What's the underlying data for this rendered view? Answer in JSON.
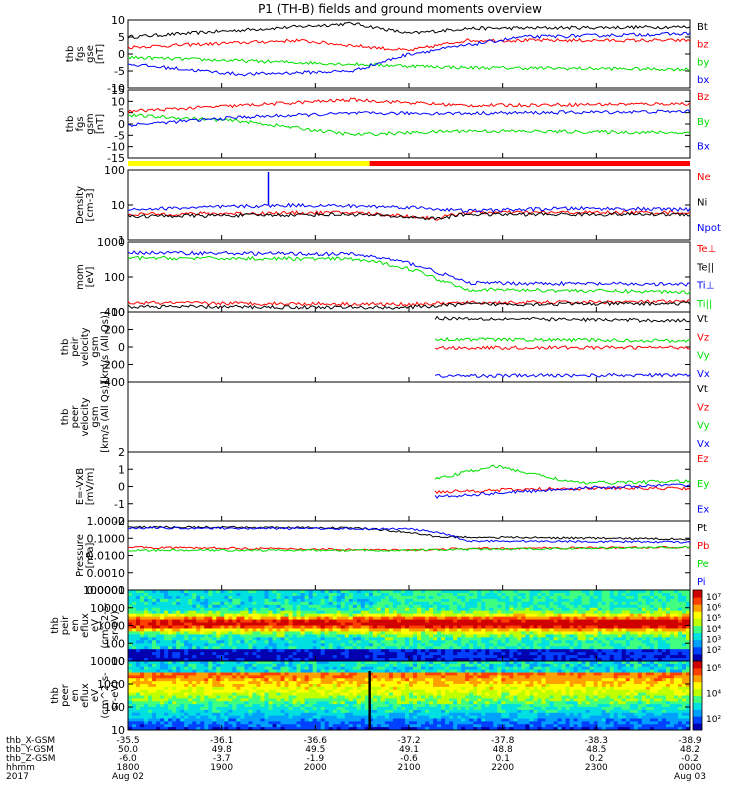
{
  "title": "P1 (TH-B) fields and ground moments overview",
  "colors": {
    "black": "#000000",
    "red": "#ff0000",
    "green": "#00e000",
    "blue": "#0000ff",
    "yellow": "#ffff00"
  },
  "ephemeris": {
    "rows": [
      {
        "label": "thb_X-GSM",
        "values": [
          "-35.5",
          "-36.1",
          "-36.6",
          "-37.2",
          "-37.8",
          "-38.3",
          "-38.9"
        ]
      },
      {
        "label": "thb_Y-GSM",
        "values": [
          "50.0",
          "49.8",
          "49.5",
          "49.1",
          "48.8",
          "48.5",
          "48.2"
        ]
      },
      {
        "label": "thb_Z-GSM",
        "values": [
          "-6.0",
          "-3.7",
          "-1.9",
          "-0.6",
          "0.1",
          "0.2",
          "-0.2"
        ]
      },
      {
        "label": "hhmm",
        "values": [
          "1800",
          "1900",
          "2000",
          "2100",
          "2200",
          "2300",
          "0000"
        ]
      },
      {
        "label": "2017",
        "values": [
          "Aug 02",
          "",
          "",
          "",
          "",
          "",
          "Aug 03"
        ]
      }
    ]
  },
  "chart_data": [
    {
      "type": "line",
      "id": "fgs_gse",
      "ylabel": [
        "thb",
        "fgs",
        "gse",
        "[nT]"
      ],
      "ylim": [
        -10,
        10
      ],
      "yticks": [
        "10",
        "5",
        "0",
        "-5",
        "-10"
      ],
      "legend": [
        "Bt",
        "bz",
        "by",
        "bx"
      ],
      "legend_colors": [
        "black",
        "red",
        "green",
        "blue"
      ],
      "series": [
        {
          "name": "Bt",
          "trace": [
            [
              0,
              5
            ],
            [
              0.2,
              7
            ],
            [
              0.4,
              9
            ],
            [
              0.5,
              6
            ],
            [
              0.6,
              7.5
            ],
            [
              1,
              8
            ]
          ]
        },
        {
          "name": "bz",
          "trace": [
            [
              0,
              2
            ],
            [
              0.3,
              4
            ],
            [
              0.5,
              1
            ],
            [
              0.6,
              4
            ],
            [
              1,
              4
            ]
          ]
        },
        {
          "name": "by",
          "trace": [
            [
              0,
              -1
            ],
            [
              0.2,
              -2
            ],
            [
              0.4,
              -3
            ],
            [
              0.6,
              -4
            ],
            [
              1,
              -4.5
            ]
          ]
        },
        {
          "name": "bx",
          "trace": [
            [
              0,
              -3
            ],
            [
              0.2,
              -6
            ],
            [
              0.4,
              -5
            ],
            [
              0.5,
              0
            ],
            [
              0.7,
              5
            ],
            [
              1,
              6
            ]
          ]
        }
      ]
    },
    {
      "type": "line",
      "id": "fgs_gsm",
      "ylabel": [
        "thb",
        "fgs",
        "gsm",
        "[nT]"
      ],
      "ylim": [
        -20,
        15
      ],
      "yticks": [
        "15",
        "10",
        "5",
        "0",
        "-5",
        "-10",
        "-15"
      ],
      "legend": [
        "Bz",
        "By",
        "Bx"
      ],
      "legend_colors": [
        "red",
        "green",
        "blue"
      ],
      "series": [
        {
          "name": "Bz",
          "trace": [
            [
              0,
              4
            ],
            [
              0.2,
              7
            ],
            [
              0.4,
              10
            ],
            [
              0.6,
              7
            ],
            [
              1,
              8
            ]
          ]
        },
        {
          "name": "By",
          "trace": [
            [
              0,
              2
            ],
            [
              0.2,
              -1
            ],
            [
              0.4,
              -8
            ],
            [
              0.6,
              -6
            ],
            [
              1,
              -7
            ]
          ]
        },
        {
          "name": "Bx",
          "trace": [
            [
              0,
              -3
            ],
            [
              0.2,
              1
            ],
            [
              0.4,
              3
            ],
            [
              0.6,
              3
            ],
            [
              1,
              4
            ]
          ]
        }
      ]
    },
    {
      "type": "line",
      "id": "density",
      "ylabel": [
        "Density",
        "[cm-3]"
      ],
      "ylim": [
        1,
        200
      ],
      "yscale": "log",
      "yticks": [
        "100",
        "10",
        "1"
      ],
      "legend": [
        "Ne",
        "Ni",
        "Npot"
      ],
      "legend_colors": [
        "red",
        "black",
        "blue"
      ],
      "series": [
        {
          "name": "Ne",
          "trace": [
            [
              0,
              7
            ],
            [
              0.4,
              8
            ],
            [
              0.55,
              5
            ],
            [
              0.6,
              8
            ],
            [
              1,
              8
            ]
          ]
        },
        {
          "name": "Ni",
          "trace": [
            [
              0,
              6
            ],
            [
              0.4,
              7
            ],
            [
              0.55,
              5
            ],
            [
              0.6,
              7
            ],
            [
              1,
              7
            ]
          ]
        },
        {
          "name": "Npot",
          "trace": [
            [
              0,
              10
            ],
            [
              0.3,
              14
            ],
            [
              0.5,
              12
            ],
            [
              0.6,
              9
            ],
            [
              0.8,
              11
            ],
            [
              1,
              10
            ]
          ]
        }
      ]
    },
    {
      "type": "line",
      "id": "temps",
      "ylabel": [
        "mom",
        "[eV]"
      ],
      "ylim": [
        10,
        2000
      ],
      "yscale": "log",
      "yticks": [
        "1000",
        "100",
        "10"
      ],
      "legend": [
        "Te⊥",
        "Te||",
        "Ti⊥",
        "Ti||"
      ],
      "legend_colors": [
        "red",
        "black",
        "blue",
        "green"
      ],
      "series": [
        {
          "name": "Te⊥",
          "trace": [
            [
              0,
              20
            ],
            [
              0.5,
              18
            ],
            [
              0.6,
              20
            ],
            [
              1,
              22
            ]
          ]
        },
        {
          "name": "Te||",
          "trace": [
            [
              0,
              15
            ],
            [
              0.5,
              14
            ],
            [
              0.6,
              18
            ],
            [
              1,
              19
            ]
          ]
        },
        {
          "name": "Ti⊥",
          "trace": [
            [
              0,
              900
            ],
            [
              0.4,
              800
            ],
            [
              0.55,
              200
            ],
            [
              0.6,
              90
            ],
            [
              1,
              80
            ]
          ]
        },
        {
          "name": "Ti||",
          "trace": [
            [
              0,
              600
            ],
            [
              0.4,
              550
            ],
            [
              0.55,
              120
            ],
            [
              0.6,
              55
            ],
            [
              1,
              45
            ]
          ]
        }
      ]
    },
    {
      "type": "line",
      "id": "peir_velocity",
      "ylabel": [
        "thb",
        "peir",
        "velocity",
        "gsm",
        "[km/s (All Qs)]"
      ],
      "ylim": [
        -400,
        400
      ],
      "yticks": [
        "400",
        "200",
        "0",
        "-200",
        "-400"
      ],
      "legend": [
        "Vt",
        "Vz",
        "Vy",
        "Vx"
      ],
      "legend_colors": [
        "black",
        "red",
        "green",
        "blue"
      ],
      "series": [
        {
          "name": "Vt",
          "trace": [
            [
              0.545,
              330
            ],
            [
              1,
              300
            ]
          ]
        },
        {
          "name": "Vz",
          "trace": [
            [
              0.545,
              -10
            ],
            [
              1,
              -5
            ]
          ]
        },
        {
          "name": "Vy",
          "trace": [
            [
              0.545,
              90
            ],
            [
              1,
              70
            ]
          ]
        },
        {
          "name": "Vx",
          "trace": [
            [
              0.545,
              -330
            ],
            [
              1,
              -320
            ]
          ]
        }
      ]
    },
    {
      "type": "line",
      "id": "peer_velocity",
      "ylabel": [
        "thb",
        "peer",
        "velocity",
        "gsm",
        "[km/s (All Qs)]"
      ],
      "ylim": [
        -400,
        400
      ],
      "yticks": [],
      "legend": [
        "Vt",
        "Vz",
        "Vy",
        "Vx"
      ],
      "legend_colors": [
        "black",
        "red",
        "green",
        "blue"
      ],
      "series": []
    },
    {
      "type": "line",
      "id": "efield",
      "ylabel": [
        "E=-VxB",
        "[mV/m]"
      ],
      "ylim": [
        -2,
        2
      ],
      "yticks": [
        "2",
        "1",
        "0",
        "-1",
        "-2"
      ],
      "legend": [
        "Ez",
        "Ey",
        "Ex"
      ],
      "legend_colors": [
        "red",
        "green",
        "blue"
      ],
      "series": [
        {
          "name": "Ez",
          "trace": [
            [
              0.545,
              -0.3
            ],
            [
              0.8,
              -0.1
            ],
            [
              1,
              -0.1
            ]
          ]
        },
        {
          "name": "Ey",
          "trace": [
            [
              0.545,
              0.4
            ],
            [
              0.65,
              1.2
            ],
            [
              0.8,
              0.2
            ],
            [
              1,
              0.3
            ]
          ]
        },
        {
          "name": "Ex",
          "trace": [
            [
              0.545,
              -0.6
            ],
            [
              0.8,
              -0.1
            ],
            [
              1,
              0.1
            ]
          ]
        }
      ]
    },
    {
      "type": "line",
      "id": "pressure",
      "ylabel": [
        "Pressure",
        "[nPa]"
      ],
      "ylim": [
        0.0001,
        1
      ],
      "yscale": "log",
      "yticks": [
        "1.0000",
        "0.1000",
        "0.0100",
        "0.0010",
        "0.0001"
      ],
      "legend": [
        "Pt",
        "Pb",
        "Pe",
        "Pi"
      ],
      "legend_colors": [
        "black",
        "red",
        "green",
        "blue"
      ],
      "series": [
        {
          "name": "Pt",
          "trace": [
            [
              0,
              0.45
            ],
            [
              0.4,
              0.4
            ],
            [
              0.55,
              0.12
            ],
            [
              1,
              0.09
            ]
          ]
        },
        {
          "name": "Pb",
          "trace": [
            [
              0,
              0.03
            ],
            [
              0.5,
              0.02
            ],
            [
              0.6,
              0.025
            ],
            [
              1,
              0.03
            ]
          ]
        },
        {
          "name": "Pe",
          "trace": [
            [
              0,
              0.02
            ],
            [
              0.5,
              0.02
            ],
            [
              1,
              0.03
            ]
          ]
        },
        {
          "name": "Pi",
          "trace": [
            [
              0,
              0.4
            ],
            [
              0.5,
              0.35
            ],
            [
              0.6,
              0.07
            ],
            [
              1,
              0.06
            ]
          ]
        }
      ]
    },
    {
      "type": "heatmap",
      "id": "peir_spec",
      "ylabel": [
        "thb",
        "peir",
        "en",
        "eflux",
        "eV",
        "(cm^2-s-",
        "sr-eV)"
      ],
      "ylim": [
        5,
        100000
      ],
      "yscale": "log",
      "yticks": [
        "100000",
        "10000",
        "1000",
        "100",
        "10"
      ],
      "colorbar": {
        "label": "[eV/(cm2-s-sr-eV)] (All Qs)",
        "ticks": [
          "10⁷",
          "10⁶",
          "10⁵",
          "10⁴",
          "10³",
          "10²"
        ]
      }
    },
    {
      "type": "heatmap",
      "id": "peer_spec",
      "ylabel": [
        "thb",
        "peer",
        "en",
        "eflux",
        "eV",
        "(cm^2-s-",
        "sr-eV)"
      ],
      "ylim": [
        5,
        20000
      ],
      "yscale": "log",
      "yticks": [
        "10000",
        "1000",
        "100",
        "10"
      ],
      "colorbar": {
        "label": "[eV/(cm2-s-sr-eV)]",
        "ticks": [
          "10⁶",
          "10⁴",
          "10²"
        ]
      }
    }
  ]
}
